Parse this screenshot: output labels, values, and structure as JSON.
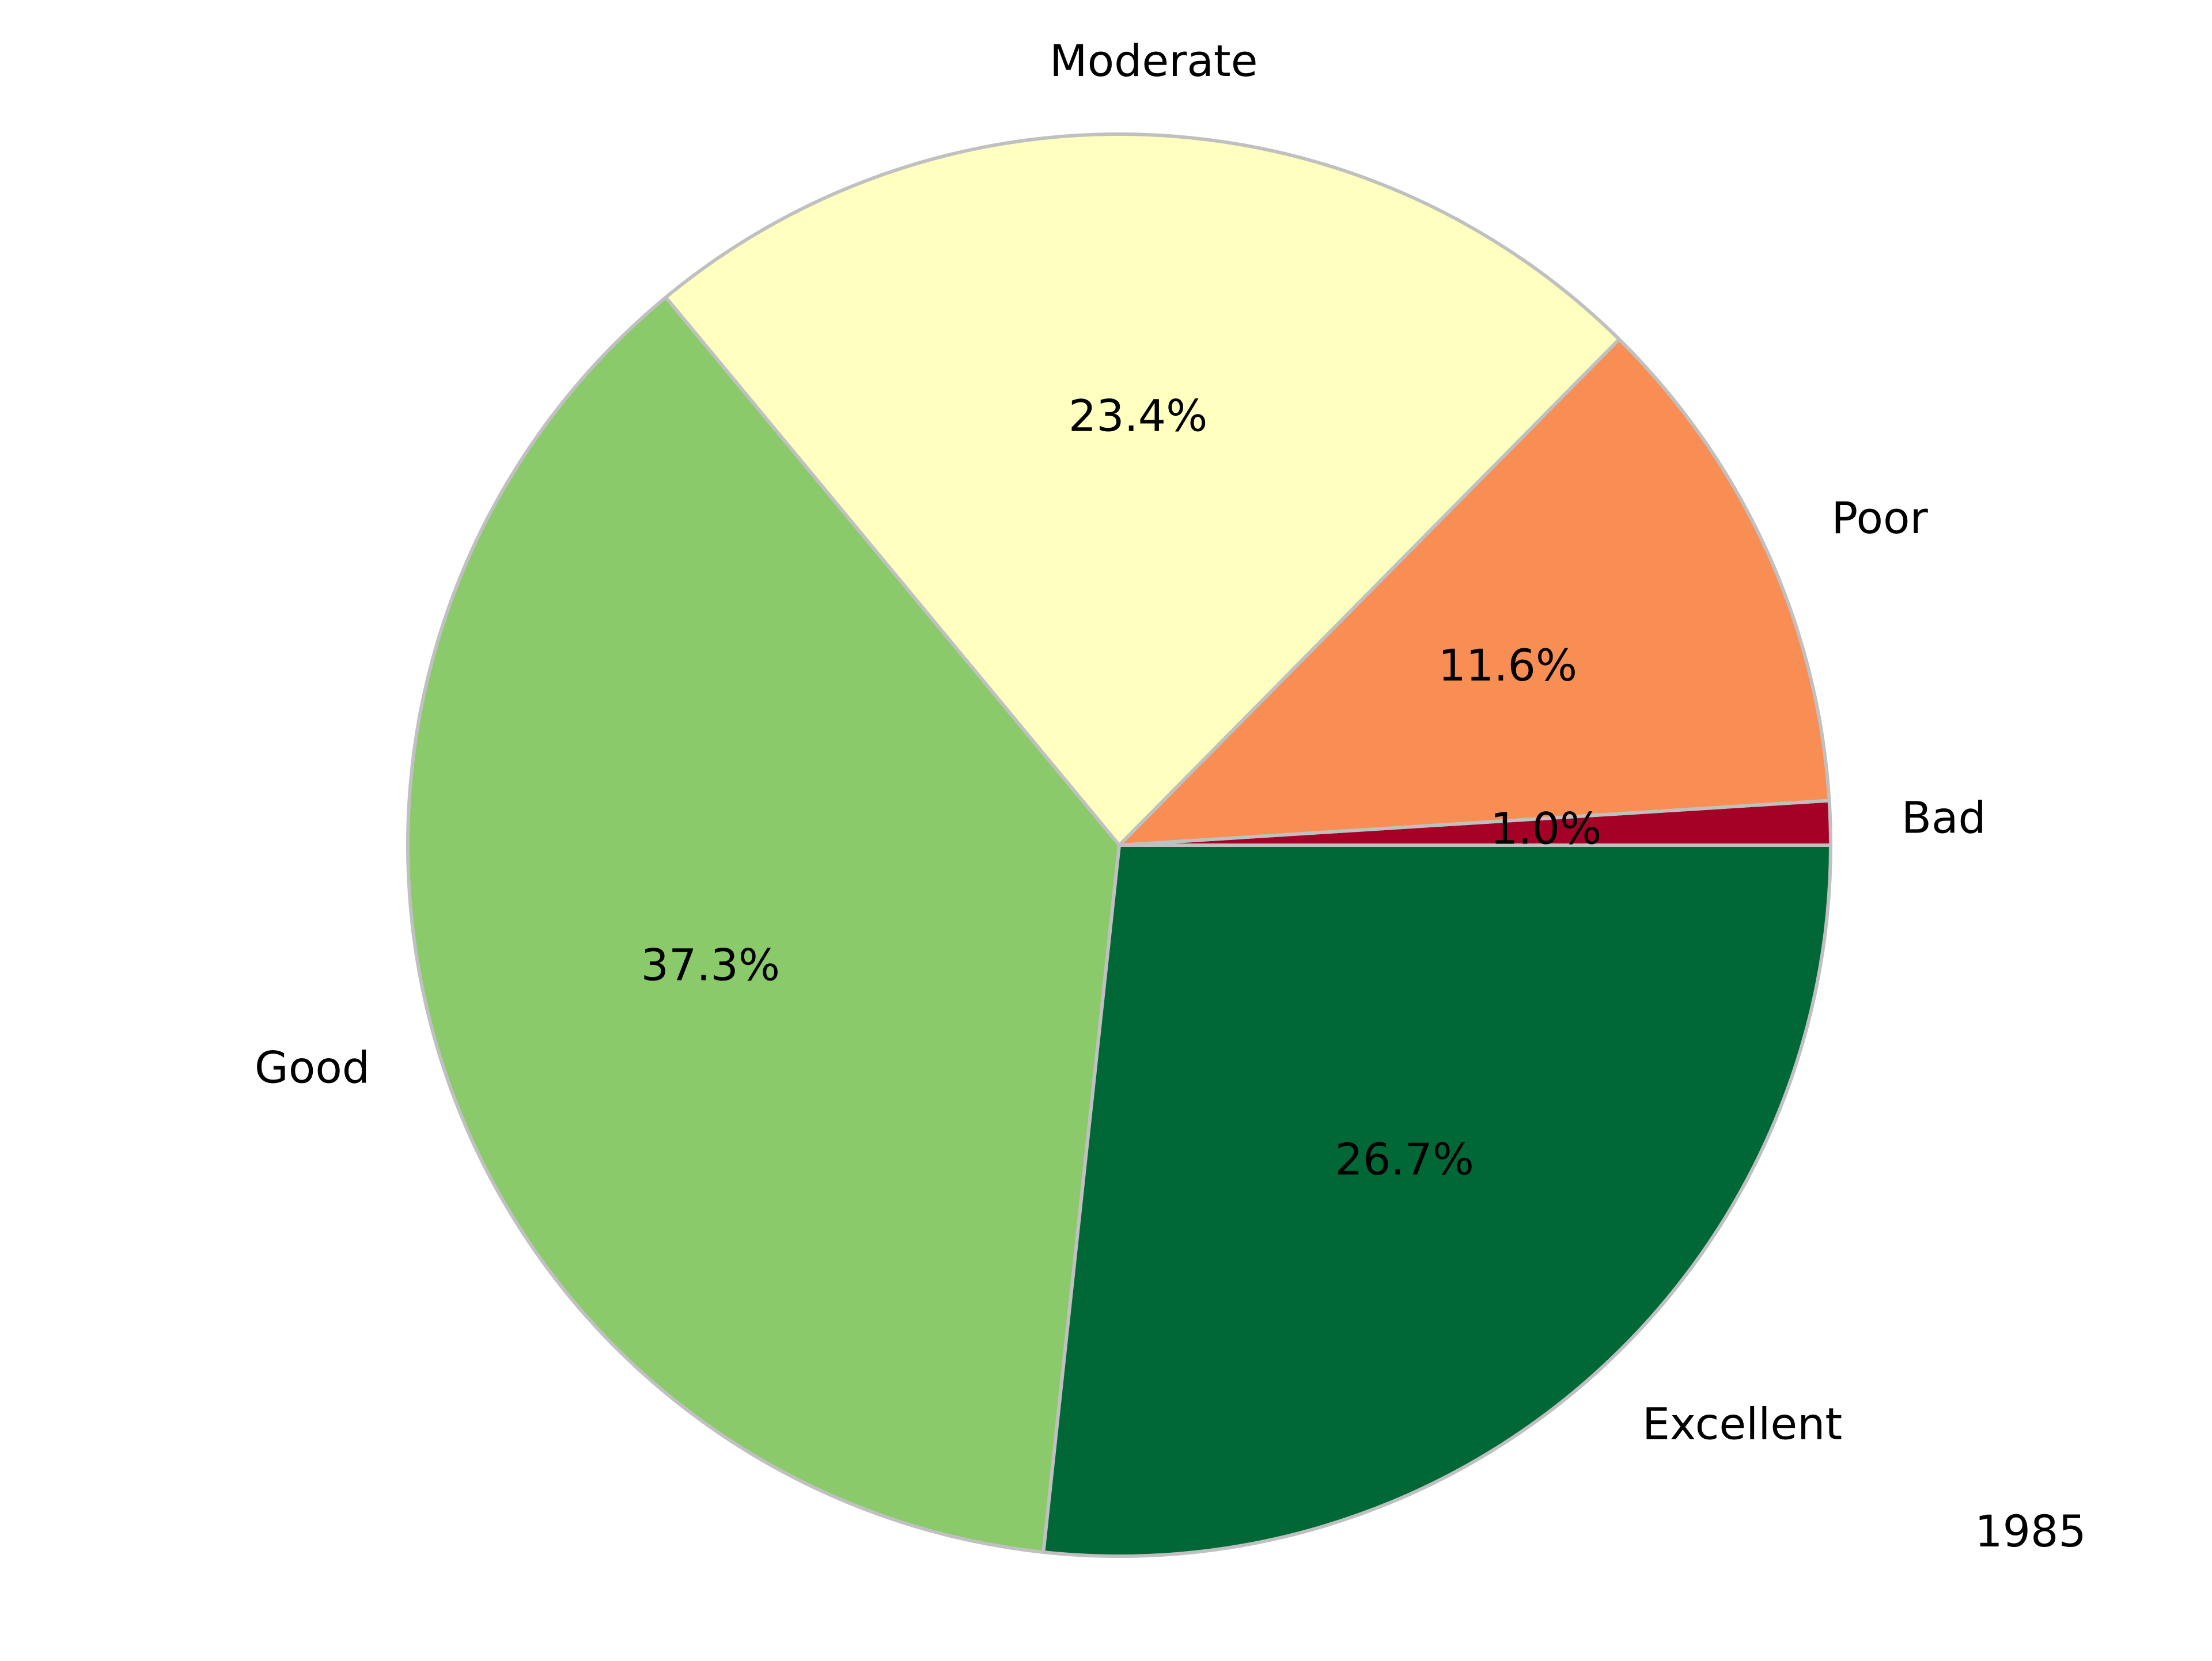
{
  "chart_data": {
    "type": "pie",
    "title": "",
    "annotation": "1985",
    "start_angle_deg": 0,
    "direction": "counterclockwise",
    "edge_color": "#c0c0c0",
    "slices": [
      {
        "label": "Bad",
        "value": 1.0,
        "pct_label": "1.0%",
        "color": "#a50026"
      },
      {
        "label": "Poor",
        "value": 11.6,
        "pct_label": "11.6%",
        "color": "#f88e53"
      },
      {
        "label": "Moderate",
        "value": 23.4,
        "pct_label": "23.4%",
        "color": "#ffffc0"
      },
      {
        "label": "Good",
        "value": 37.3,
        "pct_label": "37.3%",
        "color": "#8aca6a"
      },
      {
        "label": "Excellent",
        "value": 26.7,
        "pct_label": "26.7%",
        "color": "#006837"
      }
    ]
  }
}
